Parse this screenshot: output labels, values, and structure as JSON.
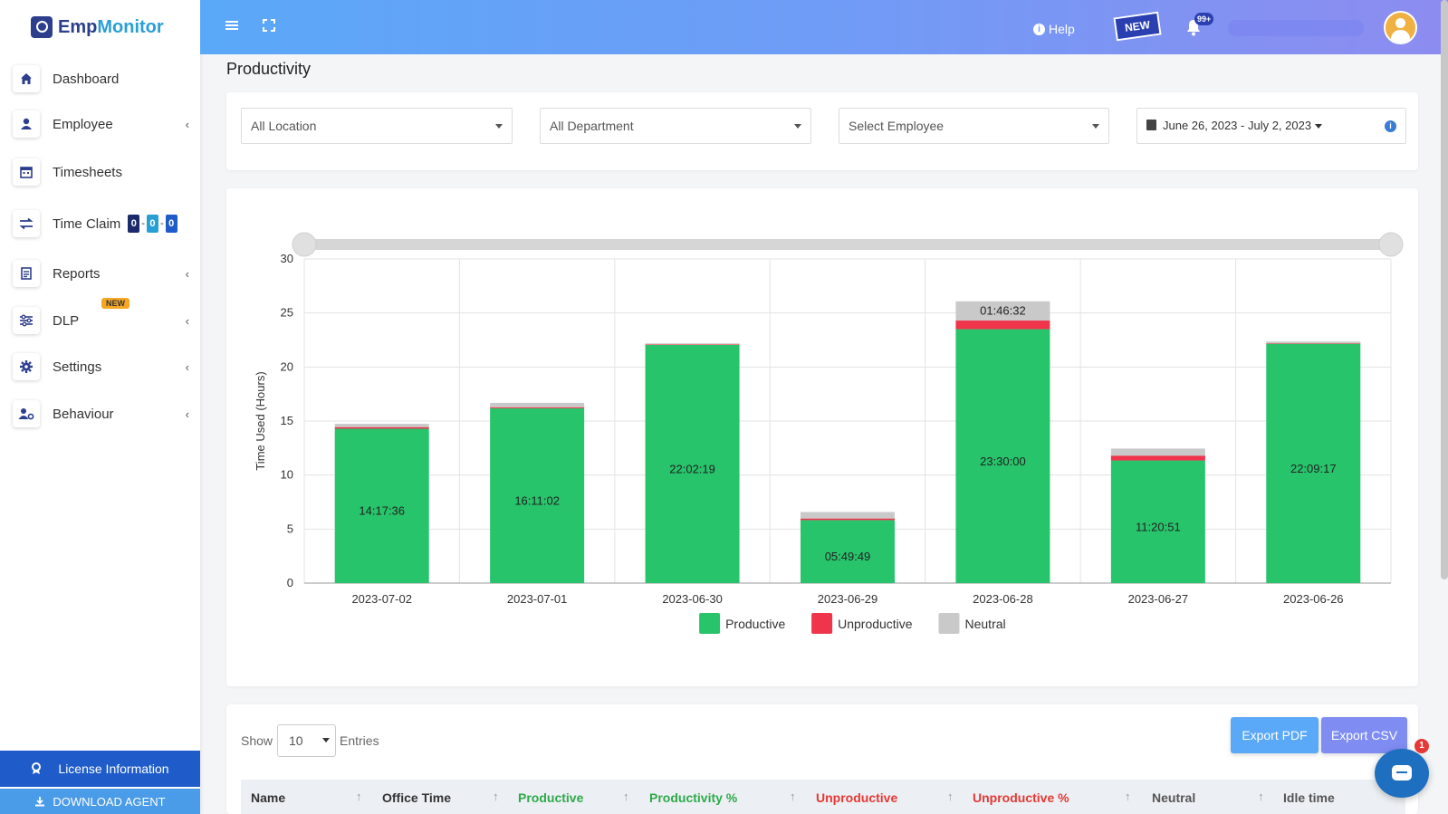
{
  "app": {
    "logo_part1": "Emp",
    "logo_part2": "Monitor"
  },
  "sidebar": {
    "items": [
      {
        "label": "Dashboard",
        "icon": "home-icon",
        "chevron": false
      },
      {
        "label": "Employee",
        "icon": "employee-icon",
        "chevron": true
      },
      {
        "label": "Timesheets",
        "icon": "calendar-icon",
        "chevron": false
      },
      {
        "label": "Time Claim",
        "icon": "swap-icon",
        "chevron": false
      },
      {
        "label": "Reports",
        "icon": "reports-icon",
        "chevron": true
      },
      {
        "label": "DLP",
        "icon": "sliders-icon",
        "chevron": true
      },
      {
        "label": "Settings",
        "icon": "gear-icon",
        "chevron": true
      },
      {
        "label": "Behaviour",
        "icon": "behaviour-icon",
        "chevron": true
      }
    ],
    "time_claim_badges": [
      "0",
      "0",
      "0"
    ],
    "time_claim_badge_colors": [
      "#1a2a6c",
      "#2a9fd6",
      "#1f5cc9"
    ],
    "dlp_new_tag": "NEW",
    "license_label": "License Information",
    "download_label": "DOWNLOAD AGENT"
  },
  "topbar": {
    "help_label": "Help",
    "new_badge": "NEW",
    "notification_count": "99+"
  },
  "page": {
    "title": "Productivity"
  },
  "filters": {
    "location": "All Location",
    "department": "All Department",
    "employee": "Select Employee",
    "date_range": "June 26, 2023 - July 2, 2023"
  },
  "chart_data": {
    "type": "bar",
    "stacked": true,
    "categories": [
      "2023-07-02",
      "2023-07-01",
      "2023-06-30",
      "2023-06-29",
      "2023-06-28",
      "2023-06-27",
      "2023-06-26"
    ],
    "series": [
      {
        "name": "Productive",
        "color": "#27c46b",
        "values": [
          14.29,
          16.18,
          22.04,
          5.83,
          23.5,
          11.35,
          22.15
        ]
      },
      {
        "name": "Unproductive",
        "color": "#f0344b",
        "values": [
          0.15,
          0.1,
          0.05,
          0.15,
          0.8,
          0.45,
          0.05
        ]
      },
      {
        "name": "Neutral",
        "color": "#c9c9c9",
        "values": [
          0.3,
          0.4,
          0.1,
          0.6,
          1.78,
          0.65,
          0.15
        ]
      }
    ],
    "bar_labels": [
      "14:17:36",
      "16:11:02",
      "22:02:19",
      "05:49:49",
      "23:30:00",
      "11:20:51",
      "22:09:17"
    ],
    "neutral_labels": [
      "",
      "",
      "",
      "",
      "01:46:32",
      "",
      ""
    ],
    "ylabel": "Time Used (Hours)",
    "yticks": [
      0,
      5,
      10,
      15,
      20,
      25,
      30
    ],
    "ylim": [
      0,
      30
    ],
    "grid": true,
    "legend_position": "bottom"
  },
  "table": {
    "show_label": "Show",
    "entries_value": "10",
    "entries_label": "Entries",
    "export_pdf": "Export PDF",
    "export_csv": "Export CSV",
    "columns": [
      {
        "label": "Name",
        "color": "#333333"
      },
      {
        "label": "Office Time",
        "color": "#333333"
      },
      {
        "label": "Productive",
        "color": "#2eaa4a"
      },
      {
        "label": "Productivity %",
        "color": "#2eaa4a"
      },
      {
        "label": "Unproductive",
        "color": "#e53935"
      },
      {
        "label": "Unproductive %",
        "color": "#e53935"
      },
      {
        "label": "Neutral",
        "color": "#555555"
      },
      {
        "label": "Idle time",
        "color": "#555555"
      }
    ]
  },
  "chat": {
    "badge": "1"
  }
}
